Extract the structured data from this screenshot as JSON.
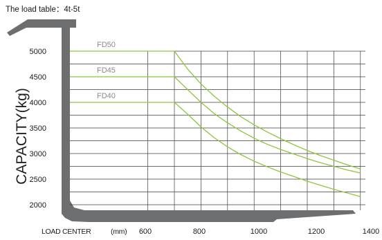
{
  "chart_data": {
    "type": "line",
    "title": "The load table：4t-5t",
    "xlabel": "LOAD CENTER",
    "xunit": "(mm)",
    "ylabel": "CAPACITY(kg)",
    "xlim": [
      500,
      1400
    ],
    "ylim": [
      1850,
      5000
    ],
    "xticks": [
      600,
      800,
      1000,
      1200,
      1400
    ],
    "yticks": [
      2000,
      2500,
      3000,
      3500,
      4000,
      4500,
      5000
    ],
    "grid": true,
    "line_color": "#8cc63f",
    "series": [
      {
        "name": "FD50",
        "x": [
          500,
          700,
          750,
          800,
          850,
          900,
          950,
          1000,
          1050,
          1100,
          1150,
          1200,
          1250,
          1300,
          1350,
          1400
        ],
        "y": [
          5000,
          5000,
          4650,
          4360,
          4120,
          3910,
          3720,
          3560,
          3420,
          3290,
          3170,
          3060,
          2960,
          2870,
          2780,
          2700
        ]
      },
      {
        "name": "FD45",
        "x": [
          500,
          700,
          750,
          800,
          850,
          900,
          950,
          1000,
          1050,
          1100,
          1150,
          1200,
          1250,
          1300,
          1350,
          1400
        ],
        "y": [
          4500,
          4500,
          4250,
          4000,
          3780,
          3600,
          3440,
          3300,
          3180,
          3080,
          2990,
          2900,
          2820,
          2750,
          2680,
          2620
        ]
      },
      {
        "name": "FD40",
        "x": [
          500,
          700,
          750,
          800,
          850,
          900,
          950,
          1000,
          1050,
          1100,
          1150,
          1200,
          1250,
          1300,
          1350,
          1400
        ],
        "y": [
          4000,
          4000,
          3770,
          3520,
          3310,
          3130,
          2980,
          2850,
          2740,
          2640,
          2550,
          2460,
          2380,
          2300,
          2230,
          2160
        ]
      }
    ]
  }
}
